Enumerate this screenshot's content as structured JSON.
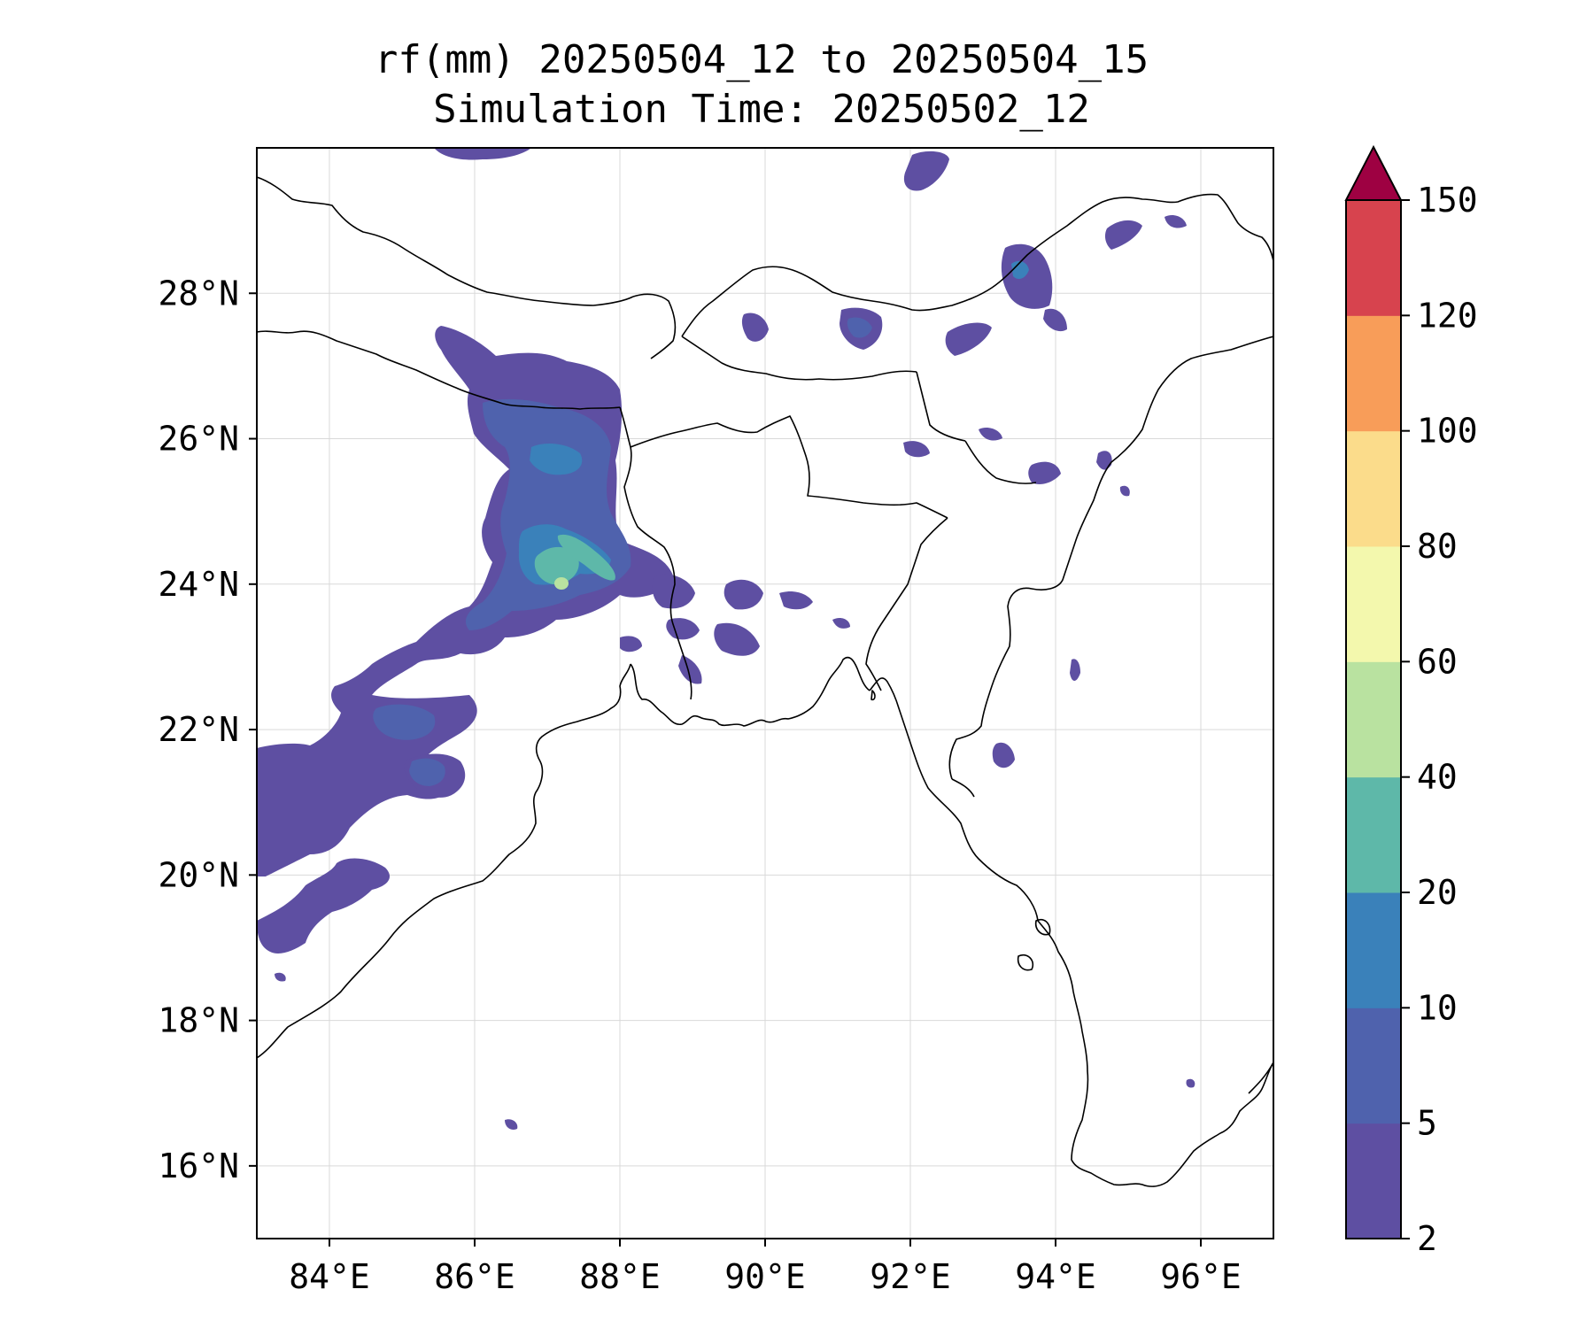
{
  "title": {
    "line1": "rf(mm) 20250504_12 to 20250504_15",
    "line2": "Simulation Time: 20250502_12"
  },
  "map": {
    "lon_range": [
      83.0,
      97.0
    ],
    "lat_range": [
      15.0,
      30.0
    ],
    "lon_ticks": [
      {
        "value": 84,
        "label": "84°E"
      },
      {
        "value": 86,
        "label": "86°E"
      },
      {
        "value": 88,
        "label": "88°E"
      },
      {
        "value": 90,
        "label": "90°E"
      },
      {
        "value": 92,
        "label": "92°E"
      },
      {
        "value": 94,
        "label": "94°E"
      },
      {
        "value": 96,
        "label": "96°E"
      }
    ],
    "lat_ticks": [
      {
        "value": 16,
        "label": "16°N"
      },
      {
        "value": 18,
        "label": "18°N"
      },
      {
        "value": 20,
        "label": "20°N"
      },
      {
        "value": 22,
        "label": "22°N"
      },
      {
        "value": 24,
        "label": "24°N"
      },
      {
        "value": 26,
        "label": "26°N"
      },
      {
        "value": 28,
        "label": "28°N"
      }
    ],
    "gridlines": true
  },
  "colorbar": {
    "levels": [
      "2",
      "5",
      "10",
      "20",
      "40",
      "60",
      "80",
      "100",
      "120",
      "150"
    ],
    "colors": [
      "#5e4fa2",
      "#4f62ad",
      "#3a81ba",
      "#5eb8a9",
      "#b9e2a0",
      "#f3f8ad",
      "#fbdc8b",
      "#f89d59",
      "#d7434e"
    ],
    "extend_color": "#9e0142",
    "extend": "max"
  },
  "rain": {
    "colors": {
      "c1": "#5e4fa2",
      "c2": "#4f62ad",
      "c3": "#3a81ba",
      "c4": "#5eb8a9",
      "c5": "#b9e2a0"
    }
  }
}
